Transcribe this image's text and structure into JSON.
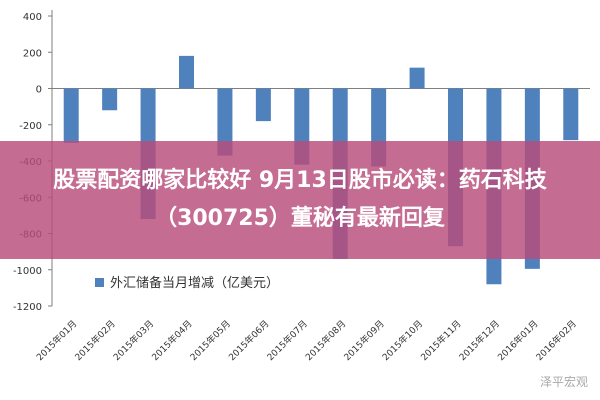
{
  "chart_data": {
    "type": "bar",
    "categories": [
      "2015年01月",
      "2015年02月",
      "2015年03月",
      "2015年04月",
      "2015年05月",
      "2015年06月",
      "2015年07月",
      "2015年08月",
      "2015年09月",
      "2015年10月",
      "2015年11月",
      "2015年12月",
      "2016年01月",
      "2016年02月"
    ],
    "series": [
      {
        "name": "外汇储备当月增减（亿美元）",
        "values": [
          -300,
          -120,
          -720,
          180,
          -370,
          -180,
          -420,
          -940,
          -430,
          115,
          -870,
          -1080,
          -995,
          -285
        ]
      }
    ],
    "yticks": [
      400,
      200,
      0,
      -200,
      -400,
      -600,
      -800,
      -1000,
      -1200
    ],
    "ylim": [
      -1200,
      400
    ],
    "legend_position": "bottom-left",
    "bar_color": "#4f81bd",
    "grid": false
  },
  "overlay": {
    "headline_line1": "股票配资哪家比较好 9月13日股市必读：药石科技",
    "headline_line2": "（300725）董秘有最新回复",
    "band_color": "#b84c7a"
  },
  "watermark": "泽平宏观"
}
